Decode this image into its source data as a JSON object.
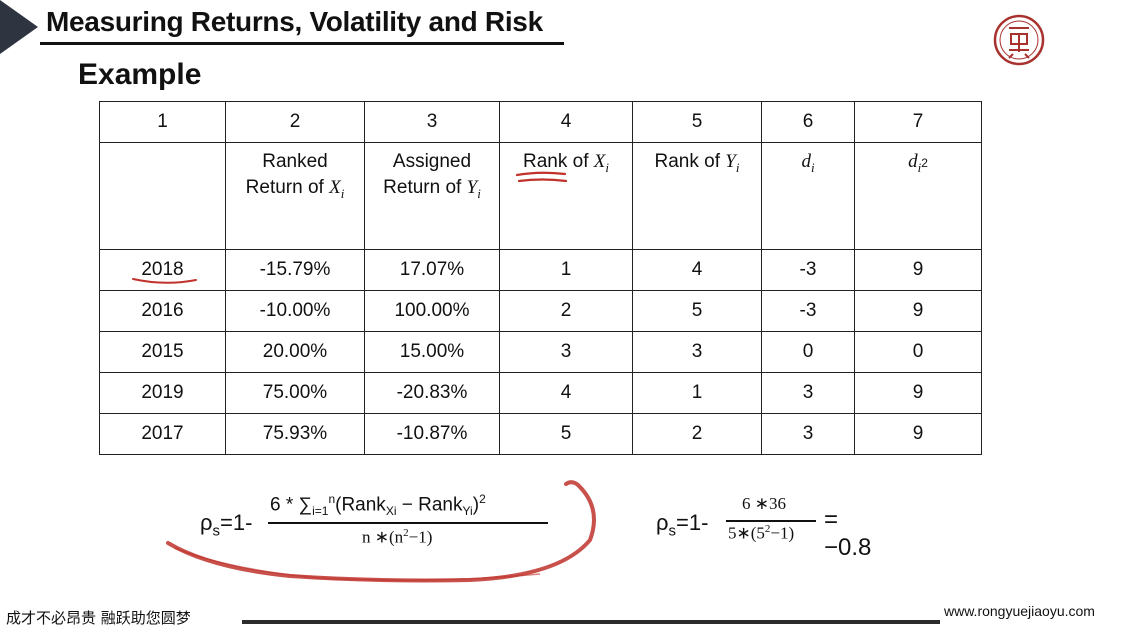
{
  "header": {
    "title": "Measuring Returns, Volatility and Risk"
  },
  "subtitle": "Example",
  "table": {
    "column_numbers": [
      "1",
      "2",
      "3",
      "4",
      "5",
      "6",
      "7"
    ],
    "headers": [
      {
        "text": "",
        "var": ""
      },
      {
        "text": "Ranked",
        "text2": "Return of ",
        "var": "X",
        "sub": "i"
      },
      {
        "text": "Assigned",
        "text2": "Return of ",
        "var": "Y",
        "sub": "i"
      },
      {
        "text": "Rank of ",
        "var": "X",
        "sub": "i"
      },
      {
        "text": "Rank of ",
        "var": "Y",
        "sub": "i"
      },
      {
        "text": "",
        "var": "d",
        "sub": "i"
      },
      {
        "text": "",
        "var": "d",
        "sub": "i",
        "sup": "2"
      }
    ],
    "rows": [
      [
        "2018",
        "-15.79%",
        "17.07%",
        "1",
        "4",
        "-3",
        "9"
      ],
      [
        "2016",
        "-10.00%",
        "100.00%",
        "2",
        "5",
        "-3",
        "9"
      ],
      [
        "2015",
        "20.00%",
        "15.00%",
        "3",
        "3",
        "0",
        "0"
      ],
      [
        "2019",
        "75.00%",
        "-20.83%",
        "4",
        "1",
        "3",
        "9"
      ],
      [
        "2017",
        "75.93%",
        "-10.87%",
        "5",
        "2",
        "3",
        "9"
      ]
    ]
  },
  "formula_general": {
    "lhs": "ρ",
    "lhs_sub": "s",
    "prefix": "=1-",
    "numerator": "6 * ∑",
    "sum_sub": "i=1",
    "sum_sup": "n",
    "numerator_body": "(Rank",
    "rank_x_sub": "Xi",
    "minus": " − Rank",
    "rank_y_sub": "Yi",
    "close": ")",
    "close_sup": "2",
    "denominator": "n ∗(n",
    "den_sup": "2",
    "den_tail": "−1)"
  },
  "formula_numeric": {
    "lhs": "ρ",
    "lhs_sub": "s",
    "prefix": "=1-",
    "numerator": "6 ∗36",
    "denominator": "5∗(5",
    "den_sup": "2",
    "den_tail": "−1)",
    "result": "= −0.8"
  },
  "footer": {
    "slogan": "成才不必昂贵 融跃助您圆梦",
    "url": "www.rongyuejiaoyu.com"
  },
  "colors": {
    "annotation": "#c0322b",
    "header_triangle": "#2f3540",
    "logo": "#a8322e"
  }
}
